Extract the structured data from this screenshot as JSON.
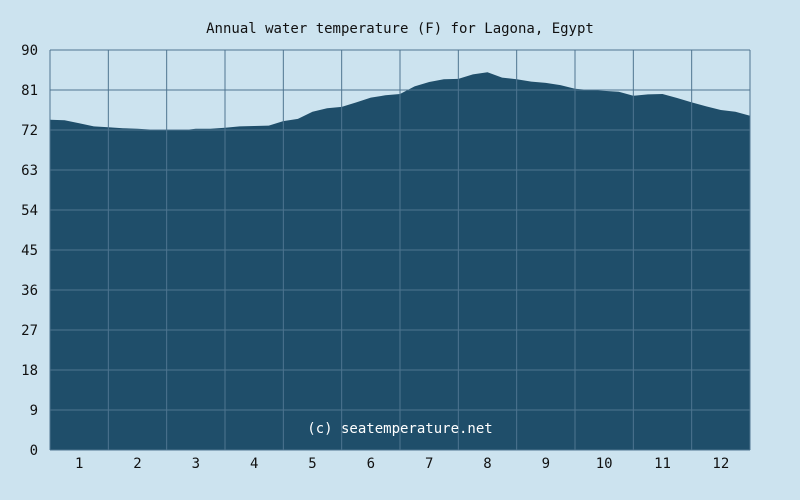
{
  "chart_data": {
    "type": "area",
    "title": "Annual water temperature (F) for Lagona, Egypt",
    "watermark": "(c) seatemperature.net",
    "xlabel": "",
    "ylabel": "",
    "ylim": [
      0,
      90
    ],
    "xlim": [
      0.5,
      12.5
    ],
    "yticks": [
      0,
      9,
      18,
      27,
      36,
      45,
      54,
      63,
      72,
      81,
      90
    ],
    "xticks": [
      1,
      2,
      3,
      4,
      5,
      6,
      7,
      8,
      9,
      10,
      11,
      12
    ],
    "grid": true,
    "colors": {
      "background": "#cce3ef",
      "fill": "#1f4e6a",
      "grid": "#4f7590",
      "text": "#111111",
      "watermark": "#ffffff"
    },
    "series": [
      {
        "x": [
          0.5,
          0.75,
          1.0,
          1.25,
          1.5,
          1.75,
          2.0,
          2.25,
          2.5,
          2.75,
          3.0,
          3.25,
          3.5,
          3.75,
          4.0,
          4.25,
          4.5,
          4.75,
          5.0,
          5.25,
          5.5,
          5.75,
          6.0,
          6.25,
          6.5,
          6.75,
          7.0,
          7.25,
          7.5,
          7.75,
          8.0,
          8.25,
          8.5,
          8.75,
          9.0,
          9.25,
          9.5,
          9.75,
          10.0,
          10.25,
          10.5,
          10.75,
          11.0,
          11.25,
          11.5,
          11.75,
          12.0,
          12.25,
          12.5
        ],
        "values": [
          74.3,
          74.2,
          73.5,
          72.8,
          72.6,
          72.4,
          72.3,
          72.1,
          71.9,
          71.9,
          72.3,
          72.3,
          72.5,
          72.8,
          72.9,
          73.0,
          74.0,
          74.5,
          76.1,
          76.9,
          77.2,
          78.2,
          79.3,
          79.8,
          80.1,
          81.8,
          82.8,
          83.4,
          83.5,
          84.5,
          85.0,
          83.8,
          83.4,
          82.9,
          82.6,
          82.1,
          81.3,
          81.0,
          80.8,
          80.6,
          79.7,
          80.0,
          80.1,
          79.2,
          78.2,
          77.3,
          76.5,
          76.1,
          75.2
        ]
      }
    ]
  }
}
